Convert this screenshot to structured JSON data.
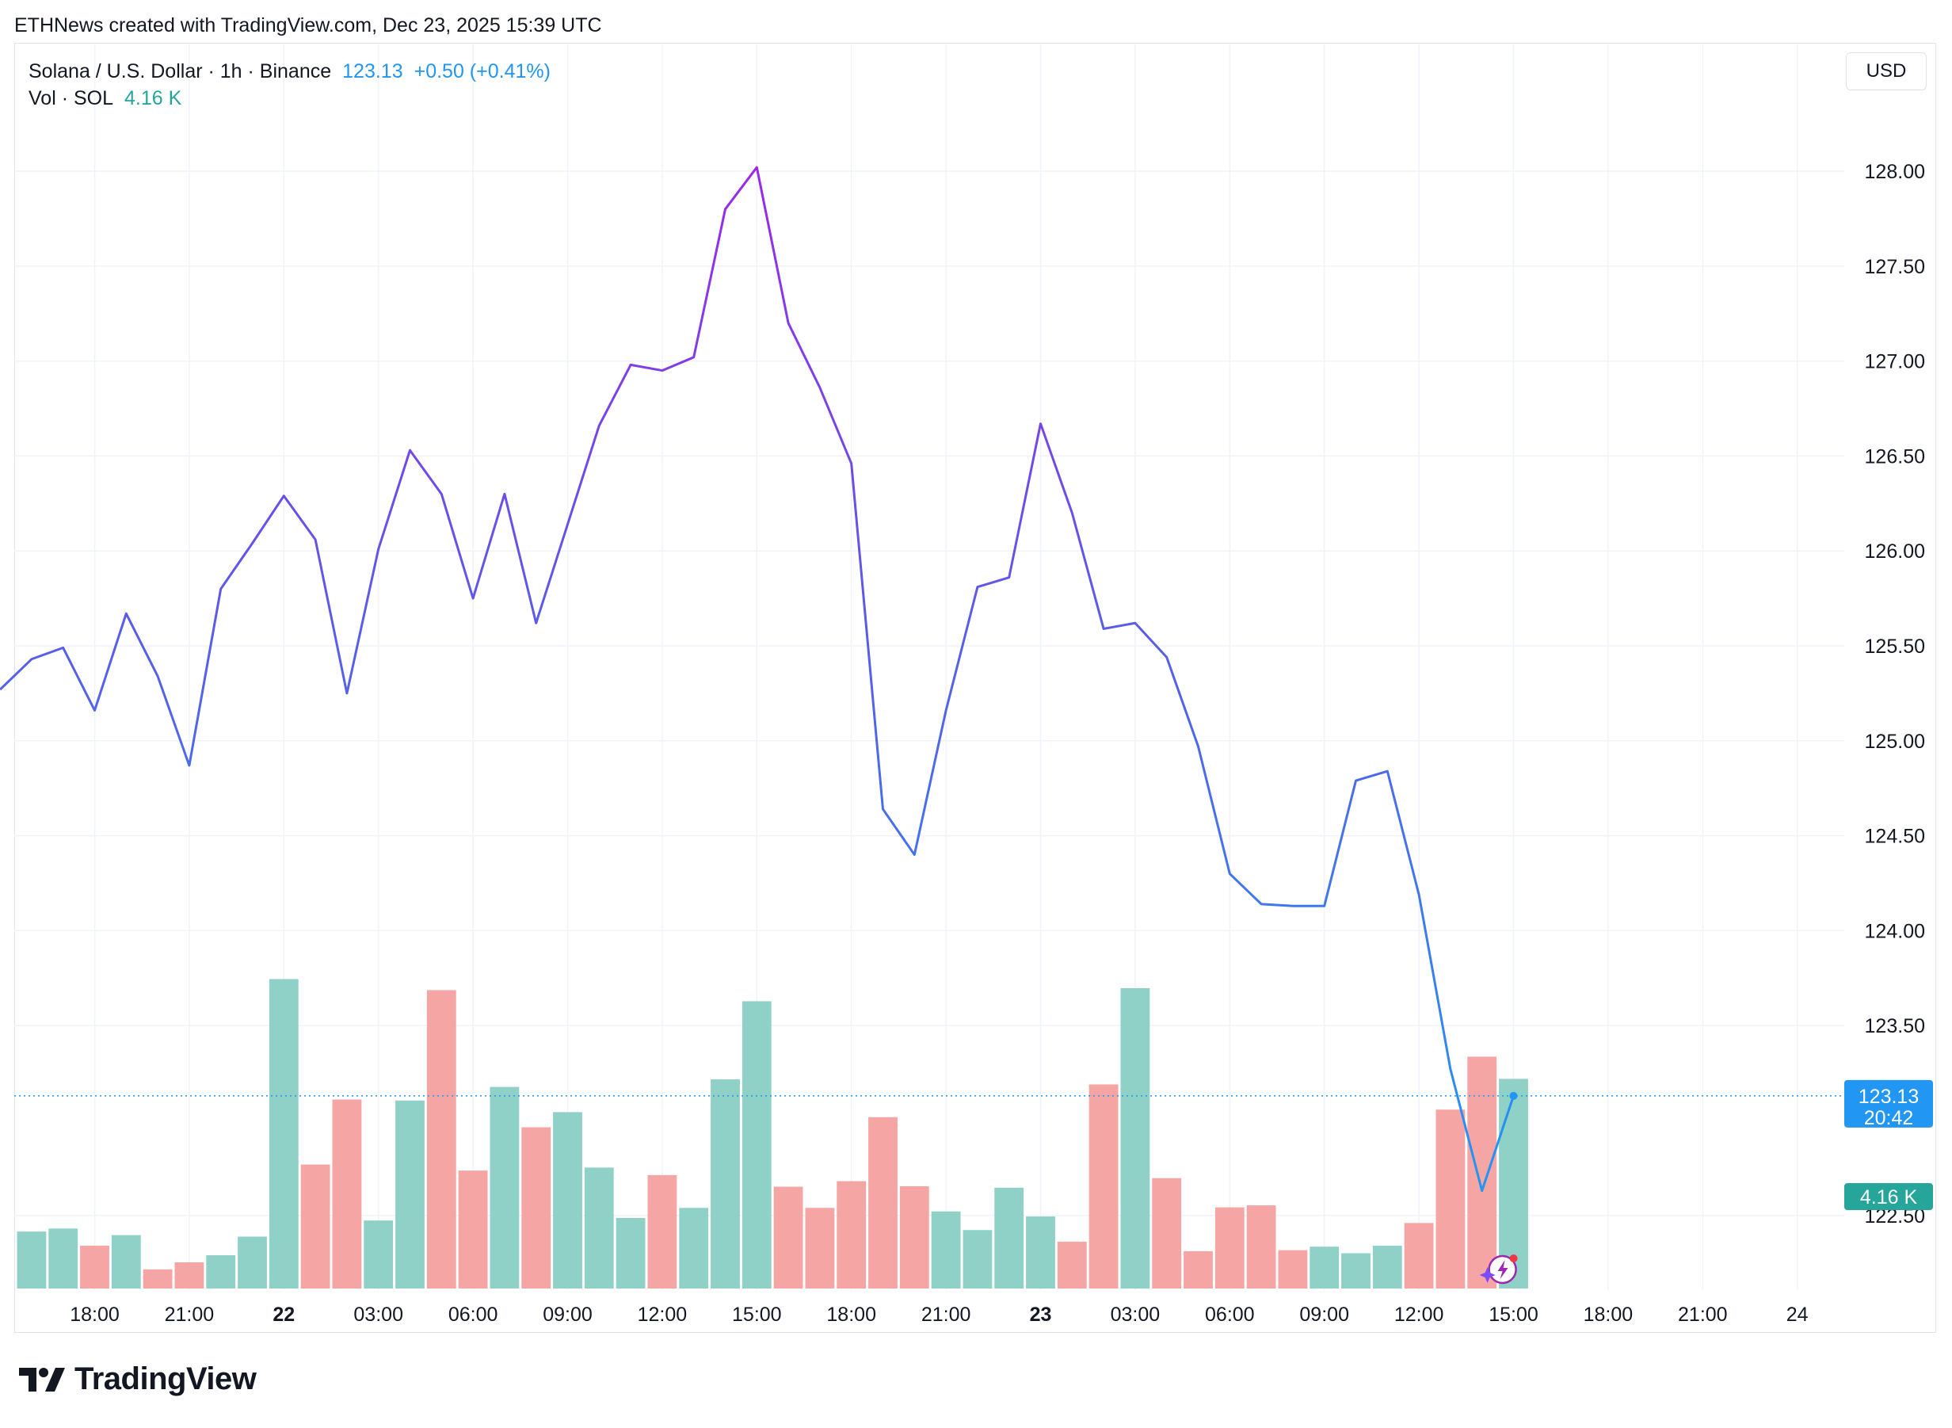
{
  "credit": "ETHNews created with TradingView.com, Dec 23, 2025 15:39 UTC",
  "legend": {
    "title": "Solana / U.S. Dollar · 1h · Binance",
    "price": "123.13",
    "change": "+0.50 (+0.41%)",
    "vol_label": "Vol · SOL",
    "vol_value": "4.16 K"
  },
  "currency_button": "USD",
  "logo_text": "TradingView",
  "colors": {
    "line_purple": "#9c27e8",
    "line_indigo": "#5b5be8",
    "line_blue": "#2196f3",
    "vol_up": "#8fd0c7",
    "vol_down": "#f5a5a3",
    "price_tag": "#2196f3",
    "vol_tag": "#26a69a",
    "grid": "#f0f3fa"
  },
  "chart_data": {
    "type": "line",
    "symbol": "Solana / U.S. Dollar",
    "interval": "1h",
    "exchange": "Binance",
    "y_axis": {
      "ylim": [
        122.0,
        128.5
      ],
      "ticks": [
        "128.00",
        "127.50",
        "127.00",
        "126.50",
        "126.00",
        "125.50",
        "125.00",
        "124.50",
        "124.00",
        "123.50",
        "122.50"
      ]
    },
    "x_axis": {
      "ticks": [
        {
          "label": "18:00",
          "bold": false,
          "i": 2.5
        },
        {
          "label": "21:00",
          "bold": false,
          "i": 5.5
        },
        {
          "label": "22",
          "bold": true,
          "i": 8.5
        },
        {
          "label": "03:00",
          "bold": false,
          "i": 11.5
        },
        {
          "label": "06:00",
          "bold": false,
          "i": 14.5
        },
        {
          "label": "09:00",
          "bold": false,
          "i": 17.5
        },
        {
          "label": "12:00",
          "bold": false,
          "i": 20.5
        },
        {
          "label": "15:00",
          "bold": false,
          "i": 23.5
        },
        {
          "label": "18:00",
          "bold": false,
          "i": 26.5
        },
        {
          "label": "21:00",
          "bold": false,
          "i": 29.5
        },
        {
          "label": "23",
          "bold": true,
          "i": 32.5
        },
        {
          "label": "03:00",
          "bold": false,
          "i": 35.5
        },
        {
          "label": "06:00",
          "bold": false,
          "i": 38.5
        },
        {
          "label": "09:00",
          "bold": false,
          "i": 41.5
        },
        {
          "label": "12:00",
          "bold": false,
          "i": 44.5
        },
        {
          "label": "15:00",
          "bold": false,
          "i": 47.5
        },
        {
          "label": "18:00",
          "bold": false,
          "i": 50.5
        },
        {
          "label": "21:00",
          "bold": false,
          "i": 53.5
        },
        {
          "label": "24",
          "bold": false,
          "i": 56.5
        }
      ]
    },
    "series": [
      {
        "values": [
          125.27,
          125.43,
          125.49,
          125.16,
          125.67,
          125.34,
          124.87,
          125.8,
          126.04,
          126.29,
          126.06,
          125.25,
          126.01,
          126.53,
          126.3,
          125.75,
          126.3,
          125.62,
          126.14,
          126.66,
          126.98,
          126.95,
          127.02,
          127.8,
          128.02,
          127.2,
          126.86,
          126.46,
          124.64,
          124.4,
          125.16,
          125.81,
          125.86,
          126.67,
          126.2,
          125.59,
          125.62,
          125.44,
          124.97,
          124.3,
          124.14,
          124.13,
          124.13,
          124.79,
          124.84,
          124.19,
          123.27,
          122.63,
          123.13
        ]
      }
    ],
    "volume": {
      "unit": "K SOL",
      "values": [
        1.13,
        1.19,
        0.85,
        1.06,
        0.38,
        0.52,
        0.66,
        1.03,
        6.14,
        2.46,
        3.75,
        1.35,
        3.73,
        5.92,
        2.34,
        4.0,
        3.2,
        3.5,
        2.4,
        1.4,
        2.25,
        1.6,
        4.15,
        5.7,
        2.02,
        1.6,
        2.13,
        3.4,
        2.03,
        1.53,
        1.16,
        2.0,
        1.43,
        0.93,
        4.05,
        5.96,
        2.19,
        0.74,
        1.61,
        1.65,
        0.76,
        0.83,
        0.7,
        0.85,
        1.3,
        3.55,
        4.6,
        4.16
      ],
      "direction": [
        "up",
        "up",
        "down",
        "up",
        "down",
        "down",
        "up",
        "up",
        "up",
        "down",
        "down",
        "up",
        "up",
        "down",
        "down",
        "up",
        "down",
        "up",
        "up",
        "up",
        "down",
        "up",
        "up",
        "up",
        "down",
        "down",
        "down",
        "down",
        "down",
        "up",
        "up",
        "up",
        "up",
        "down",
        "down",
        "up",
        "down",
        "down",
        "down",
        "down",
        "down",
        "up",
        "up",
        "up",
        "down",
        "down",
        "down",
        "up"
      ]
    },
    "last_price": "123.13",
    "countdown": "20:42",
    "last_volume": "4.16 K"
  }
}
